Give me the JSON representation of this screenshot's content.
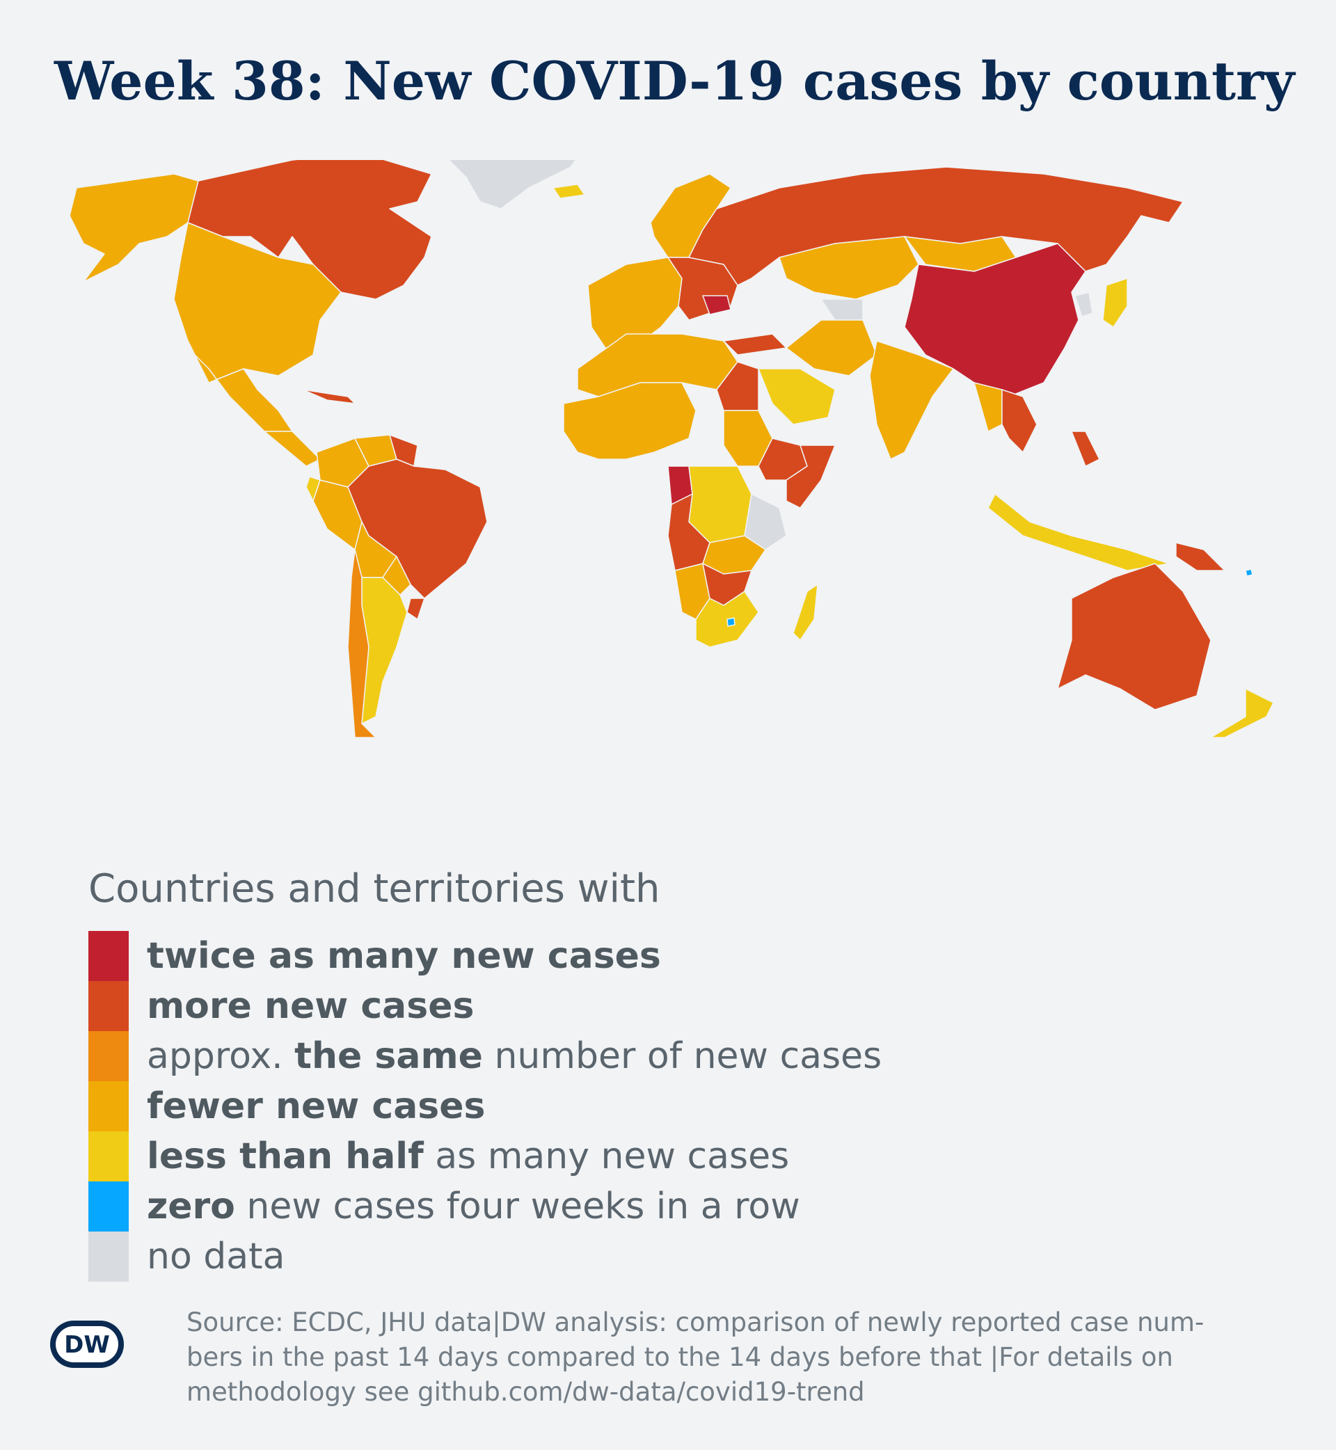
{
  "header": {
    "title": "Week 38: New COVID-19 cases by country"
  },
  "colors": {
    "twice": "#c1212f",
    "more": "#d6491e",
    "same": "#ee8a10",
    "fewer": "#f0ab07",
    "less_half": "#f0cc16",
    "zero": "#06a7ff",
    "no_data": "#d8dce0",
    "background": "#f1f3f5",
    "title": "#0b2a52"
  },
  "legend": {
    "heading": "Countries and territories with",
    "items": [
      {
        "key": "twice",
        "parts": [
          {
            "t": "twice as many new cases",
            "b": true
          }
        ]
      },
      {
        "key": "more",
        "parts": [
          {
            "t": "more new cases",
            "b": true
          }
        ]
      },
      {
        "key": "same",
        "parts": [
          {
            "t": "approx. ",
            "b": false
          },
          {
            "t": "the same",
            "b": true
          },
          {
            "t": " number of new cases",
            "b": false
          }
        ]
      },
      {
        "key": "fewer",
        "parts": [
          {
            "t": "fewer new cases",
            "b": true
          }
        ]
      },
      {
        "key": "less_half",
        "parts": [
          {
            "t": "less than half",
            "b": true
          },
          {
            "t": " as many new cases",
            "b": false
          }
        ]
      },
      {
        "key": "zero",
        "parts": [
          {
            "t": "zero",
            "b": true
          },
          {
            "t": " new cases four weeks in a row",
            "b": false
          }
        ]
      },
      {
        "key": "no_data",
        "parts": [
          {
            "t": "no data",
            "b": false
          }
        ]
      }
    ]
  },
  "map": {
    "regions": [
      {
        "name": "Alaska",
        "category": "fewer"
      },
      {
        "name": "Canada",
        "category": "more"
      },
      {
        "name": "Greenland",
        "category": "no_data"
      },
      {
        "name": "United States",
        "category": "fewer"
      },
      {
        "name": "Mexico",
        "category": "fewer"
      },
      {
        "name": "Central America",
        "category": "fewer"
      },
      {
        "name": "Cuba",
        "category": "more"
      },
      {
        "name": "Colombia",
        "category": "fewer"
      },
      {
        "name": "Venezuela",
        "category": "fewer"
      },
      {
        "name": "Guyana",
        "category": "more"
      },
      {
        "name": "Peru",
        "category": "fewer"
      },
      {
        "name": "Ecuador",
        "category": "less_half"
      },
      {
        "name": "Brazil",
        "category": "more"
      },
      {
        "name": "Bolivia",
        "category": "fewer"
      },
      {
        "name": "Paraguay",
        "category": "fewer"
      },
      {
        "name": "Argentina",
        "category": "less_half"
      },
      {
        "name": "Chile",
        "category": "same"
      },
      {
        "name": "Uruguay",
        "category": "more"
      },
      {
        "name": "Iceland",
        "category": "less_half"
      },
      {
        "name": "Scandinavia",
        "category": "fewer"
      },
      {
        "name": "Western Europe",
        "category": "fewer"
      },
      {
        "name": "Central Europe",
        "category": "more"
      },
      {
        "name": "Romania",
        "category": "twice"
      },
      {
        "name": "Russia",
        "category": "more"
      },
      {
        "name": "Turkey",
        "category": "more"
      },
      {
        "name": "Kazakhstan",
        "category": "fewer"
      },
      {
        "name": "Mongolia",
        "category": "fewer"
      },
      {
        "name": "China",
        "category": "twice"
      },
      {
        "name": "Korea",
        "category": "no_data"
      },
      {
        "name": "Japan",
        "category": "less_half"
      },
      {
        "name": "Turkmenistan",
        "category": "no_data"
      },
      {
        "name": "Iran",
        "category": "fewer"
      },
      {
        "name": "Saudi Arabia",
        "category": "less_half"
      },
      {
        "name": "India",
        "category": "fewer"
      },
      {
        "name": "Myanmar",
        "category": "fewer"
      },
      {
        "name": "Indochina",
        "category": "more"
      },
      {
        "name": "Philippines",
        "category": "more"
      },
      {
        "name": "Indonesia",
        "category": "less_half"
      },
      {
        "name": "Papua New Guinea",
        "category": "more"
      },
      {
        "name": "Australia",
        "category": "more"
      },
      {
        "name": "New Zealand",
        "category": "less_half"
      },
      {
        "name": "North Africa",
        "category": "fewer"
      },
      {
        "name": "Egypt",
        "category": "more"
      },
      {
        "name": "West Africa",
        "category": "fewer"
      },
      {
        "name": "Sudan",
        "category": "fewer"
      },
      {
        "name": "Ethiopia",
        "category": "more"
      },
      {
        "name": "Somalia",
        "category": "more"
      },
      {
        "name": "Congo",
        "category": "twice"
      },
      {
        "name": "DR Congo",
        "category": "less_half"
      },
      {
        "name": "Tanzania",
        "category": "no_data"
      },
      {
        "name": "Angola",
        "category": "more"
      },
      {
        "name": "Zambia",
        "category": "fewer"
      },
      {
        "name": "Namibia",
        "category": "fewer"
      },
      {
        "name": "Botswana",
        "category": "more"
      },
      {
        "name": "South Africa",
        "category": "less_half"
      },
      {
        "name": "Lesotho",
        "category": "zero"
      },
      {
        "name": "Madagascar",
        "category": "less_half"
      },
      {
        "name": "Pacific islands",
        "category": "zero"
      }
    ]
  },
  "footer": {
    "logo_text": "DW",
    "source_lines": [
      "Source: ECDC, JHU data|DW analysis: comparison of newly reported case num-",
      "bers in the past 14 days compared to the 14 days before that |For details on",
      "methodology see github.com/dw-data/covid19-trend"
    ]
  }
}
